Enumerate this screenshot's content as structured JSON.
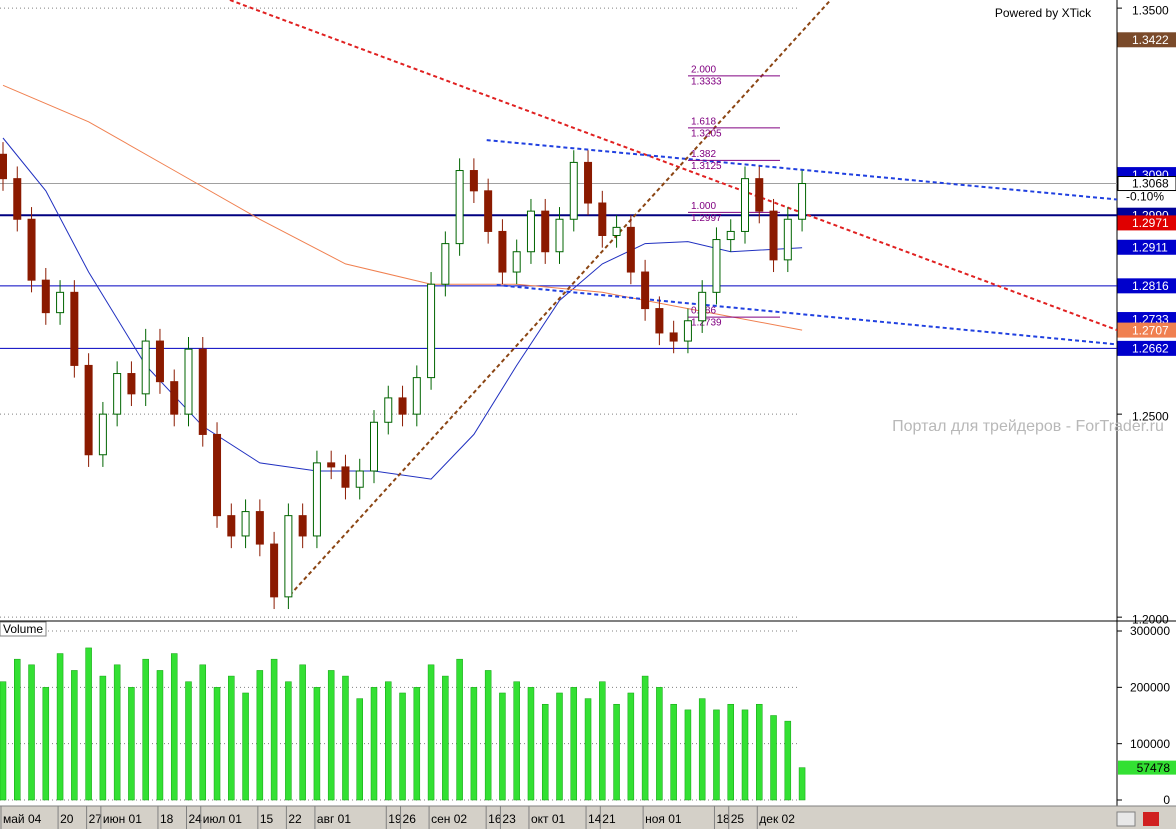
{
  "chart_data": [
    {
      "type": "candlestick",
      "categories": [
        "май 04",
        null,
        null,
        null,
        "20",
        null,
        "27",
        "июн 01",
        null,
        null,
        null,
        "18",
        null,
        "24",
        "июл 01",
        null,
        null,
        null,
        "15",
        null,
        "22",
        null,
        "авг 01",
        null,
        null,
        null,
        null,
        "19",
        "26",
        null,
        "сен 02",
        null,
        null,
        null,
        "16",
        "23",
        null,
        "окт 01",
        null,
        null,
        null,
        "14",
        "21",
        null,
        null,
        "ноя 01",
        null,
        null,
        null,
        null,
        "18",
        "25",
        null,
        "дек 02",
        null,
        null,
        null
      ],
      "open": [
        1.314,
        1.308,
        1.298,
        1.283,
        1.275,
        1.28,
        1.262,
        1.24,
        1.25,
        1.26,
        1.255,
        1.268,
        1.258,
        1.25,
        1.266,
        1.245,
        1.225,
        1.22,
        1.226,
        1.218,
        1.205,
        1.225,
        1.22,
        1.238,
        1.237,
        1.232,
        1.236,
        1.248,
        1.254,
        1.25,
        1.259,
        1.282,
        1.292,
        1.31,
        1.305,
        1.295,
        1.285,
        1.29,
        1.3,
        1.29,
        1.298,
        1.312,
        1.302,
        1.294,
        1.296,
        1.285,
        1.276,
        1.27,
        1.268,
        1.273,
        1.28,
        1.293,
        1.295,
        1.308,
        1.3,
        1.288,
        1.298
      ],
      "high": [
        1.317,
        1.311,
        1.301,
        1.286,
        1.283,
        1.283,
        1.265,
        1.253,
        1.263,
        1.263,
        1.271,
        1.271,
        1.261,
        1.269,
        1.269,
        1.248,
        1.228,
        1.229,
        1.229,
        1.221,
        1.228,
        1.228,
        1.241,
        1.241,
        1.24,
        1.239,
        1.251,
        1.257,
        1.257,
        1.262,
        1.285,
        1.295,
        1.313,
        1.313,
        1.308,
        1.298,
        1.293,
        1.303,
        1.303,
        1.301,
        1.315,
        1.315,
        1.305,
        1.299,
        1.299,
        1.288,
        1.279,
        1.273,
        1.276,
        1.283,
        1.296,
        1.298,
        1.311,
        1.311,
        1.303,
        1.301,
        1.31
      ],
      "low": [
        1.305,
        1.295,
        1.28,
        1.272,
        1.272,
        1.259,
        1.237,
        1.237,
        1.247,
        1.252,
        1.252,
        1.255,
        1.247,
        1.247,
        1.242,
        1.222,
        1.217,
        1.217,
        1.215,
        1.202,
        1.202,
        1.217,
        1.217,
        1.234,
        1.229,
        1.229,
        1.233,
        1.245,
        1.247,
        1.247,
        1.256,
        1.279,
        1.289,
        1.302,
        1.292,
        1.282,
        1.282,
        1.287,
        1.287,
        1.287,
        1.295,
        1.299,
        1.291,
        1.291,
        1.282,
        1.273,
        1.267,
        1.265,
        1.265,
        1.27,
        1.277,
        1.29,
        1.292,
        1.297,
        1.285,
        1.285,
        1.295
      ],
      "close": [
        1.308,
        1.298,
        1.283,
        1.275,
        1.28,
        1.262,
        1.24,
        1.25,
        1.26,
        1.255,
        1.268,
        1.258,
        1.25,
        1.266,
        1.245,
        1.225,
        1.22,
        1.226,
        1.218,
        1.205,
        1.225,
        1.22,
        1.238,
        1.237,
        1.232,
        1.236,
        1.248,
        1.254,
        1.25,
        1.259,
        1.282,
        1.292,
        1.31,
        1.305,
        1.295,
        1.285,
        1.29,
        1.3,
        1.29,
        1.298,
        1.312,
        1.302,
        1.294,
        1.296,
        1.285,
        1.276,
        1.27,
        1.268,
        1.273,
        1.28,
        1.293,
        1.295,
        1.308,
        1.3,
        1.288,
        1.298,
        1.3068
      ],
      "up_color": "#006400",
      "down_color": "#8b1a00",
      "xlim": [
        -0.21,
        78.07
      ],
      "ylim": [
        1.1993,
        1.352
      ],
      "yticks": [
        {
          "value": 1.35,
          "label": "1.3500"
        },
        {
          "value": 1.25,
          "label": "1.2500"
        },
        {
          "value": 1.2,
          "label": "1.2000"
        }
      ],
      "grid": true,
      "overlays": [
        {
          "color": "#2030c0",
          "dash": false,
          "x": [
            0,
            3,
            6,
            10,
            14,
            18,
            22,
            26,
            30,
            33,
            36,
            39,
            42,
            45,
            48,
            51,
            56
          ],
          "values": [
            1.318,
            1.305,
            1.285,
            1.262,
            1.247,
            1.238,
            1.236,
            1.236,
            1.234,
            1.245,
            1.262,
            1.278,
            1.287,
            1.292,
            1.2925,
            1.29,
            1.291
          ]
        },
        {
          "color": "#f08050",
          "dash": false,
          "x": [
            0,
            6,
            12,
            18,
            24,
            30,
            36,
            42,
            48,
            56
          ],
          "values": [
            1.331,
            1.322,
            1.31,
            1.298,
            1.287,
            1.282,
            1.282,
            1.28,
            1.276,
            1.2707
          ]
        },
        {
          "color": "#e02020",
          "dash": true,
          "x": [
            15.9,
            78.6
          ],
          "values": [
            1.352,
            1.27
          ]
        },
        {
          "color": "#2040e0",
          "dash": true,
          "x": [
            33.9,
            78.6
          ],
          "values": [
            1.3175,
            1.3027
          ]
        },
        {
          "color": "#2040e0",
          "dash": true,
          "x": [
            34.6,
            78.6
          ],
          "values": [
            1.2818,
            1.267
          ]
        },
        {
          "color": "#8b4513",
          "dash": true,
          "x": [
            20.1,
            58
          ],
          "values": [
            1.2054,
            1.352
          ]
        }
      ],
      "hlines": [
        {
          "value": 1.3068,
          "color": "#a0a0a0",
          "width": 1
        },
        {
          "value": 1.299,
          "color": "#000080",
          "width": 2
        },
        {
          "value": 1.2816,
          "color": "#0000c0",
          "width": 1
        },
        {
          "value": 1.2662,
          "color": "#0000c0",
          "width": 1
        }
      ],
      "fib": [
        {
          "ratio": "2.000",
          "value": 1.3333,
          "label": "1.3333"
        },
        {
          "ratio": "1.618",
          "value": 1.3205,
          "label": "1.3205"
        },
        {
          "ratio": "1.382",
          "value": 1.3125,
          "label": "1.3125"
        },
        {
          "ratio": "1.000",
          "value": 1.2997,
          "label": "1.2997"
        },
        {
          "ratio": "0.886",
          "value": 1.2739,
          "label": "1.2739"
        }
      ],
      "fib_color": "#800080",
      "price_tags": [
        {
          "value": 1.3422,
          "label": "1.3422",
          "bg": "#7a4a2a"
        },
        {
          "value": 1.309,
          "label": "1.3090",
          "bg": "#0000cc"
        },
        {
          "value": 1.3068,
          "label": "1.3068",
          "bg": "#ffffff"
        },
        {
          "value": 1.299,
          "label": "1.2990",
          "bg": "#000099"
        },
        {
          "value": 1.2971,
          "label": "1.2971",
          "bg": "#e00000"
        },
        {
          "value": 1.2911,
          "label": "1.2911",
          "bg": "#0000cc"
        },
        {
          "value": 1.2816,
          "label": "1.2816",
          "bg": "#0000cc"
        },
        {
          "value": 1.2733,
          "label": "1.2733",
          "bg": "#0000cc"
        },
        {
          "value": 1.2707,
          "label": "1.2707",
          "bg": "#f08050"
        },
        {
          "value": 1.2662,
          "label": "1.2662",
          "bg": "#0000cc"
        }
      ],
      "change": "-0.10%",
      "credit": "Powered by XTick",
      "watermark": "Портал для трейдеров - ForTrader.ru"
    },
    {
      "type": "bar",
      "title": "Volume",
      "values": [
        210000,
        250000,
        240000,
        200000,
        260000,
        230000,
        270000,
        220000,
        240000,
        200000,
        250000,
        230000,
        260000,
        210000,
        240000,
        200000,
        220000,
        190000,
        230000,
        250000,
        210000,
        240000,
        200000,
        230000,
        220000,
        180000,
        200000,
        210000,
        190000,
        200000,
        240000,
        220000,
        250000,
        200000,
        230000,
        190000,
        210000,
        200000,
        170000,
        190000,
        200000,
        180000,
        210000,
        170000,
        190000,
        220000,
        200000,
        170000,
        160000,
        180000,
        160000,
        170000,
        160000,
        170000,
        150000,
        140000,
        57478
      ],
      "color": "#33e033",
      "ylim": [
        0,
        316000
      ],
      "yticks": [
        300000,
        200000,
        100000,
        0
      ],
      "grid": true
    }
  ]
}
